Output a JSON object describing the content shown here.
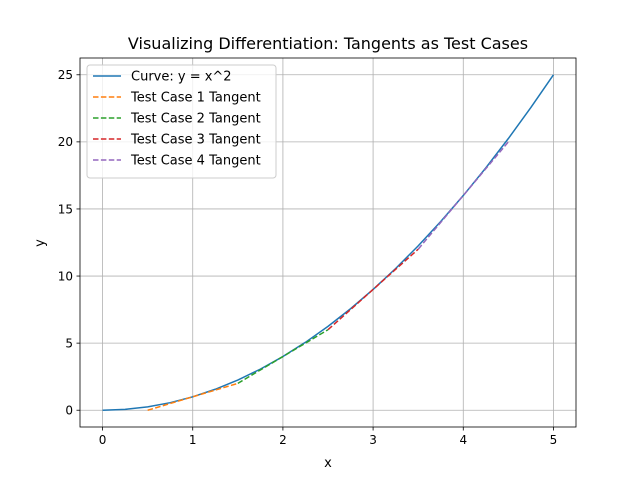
{
  "chart_data": {
    "type": "line",
    "title": "Visualizing Differentiation: Tangents as Test Cases",
    "xlabel": "x",
    "ylabel": "y",
    "xlim": [
      -0.25,
      5.25
    ],
    "ylim": [
      -1.25,
      26.25
    ],
    "xticks": [
      0,
      1,
      2,
      3,
      4,
      5
    ],
    "yticks": [
      0,
      5,
      10,
      15,
      20,
      25
    ],
    "grid": true,
    "legend_position": "top-left",
    "series": [
      {
        "name": "Curve: y = x^2",
        "style": "solid",
        "color": "#1f77b4",
        "x": [
          0,
          0.25,
          0.5,
          0.75,
          1,
          1.25,
          1.5,
          1.75,
          2,
          2.25,
          2.5,
          2.75,
          3,
          3.25,
          3.5,
          3.75,
          4,
          4.25,
          4.5,
          4.75,
          5
        ],
        "y": [
          0,
          0.0625,
          0.25,
          0.5625,
          1,
          1.5625,
          2.25,
          3.0625,
          4,
          5.0625,
          6.25,
          7.5625,
          9,
          10.5625,
          12.25,
          14.0625,
          16,
          18.0625,
          20.25,
          22.5625,
          25
        ]
      },
      {
        "name": "Test Case 1 Tangent",
        "style": "dashed",
        "color": "#ff7f0e",
        "x": [
          0.5,
          0.75,
          1,
          1.25,
          1.5
        ],
        "y": [
          0,
          0.5,
          1,
          1.5,
          2
        ]
      },
      {
        "name": "Test Case 2 Tangent",
        "style": "dashed",
        "color": "#2ca02c",
        "x": [
          1.5,
          1.75,
          2,
          2.25,
          2.5
        ],
        "y": [
          2,
          3,
          4,
          5,
          6
        ]
      },
      {
        "name": "Test Case 3 Tangent",
        "style": "dashed",
        "color": "#d62728",
        "x": [
          2.5,
          2.75,
          3,
          3.25,
          3.5
        ],
        "y": [
          6,
          7.5,
          9,
          10.5,
          12
        ]
      },
      {
        "name": "Test Case 4 Tangent",
        "style": "dashed",
        "color": "#9467bd",
        "x": [
          3.5,
          3.75,
          4,
          4.25,
          4.5
        ],
        "y": [
          12,
          14,
          16,
          18,
          20
        ]
      }
    ]
  }
}
